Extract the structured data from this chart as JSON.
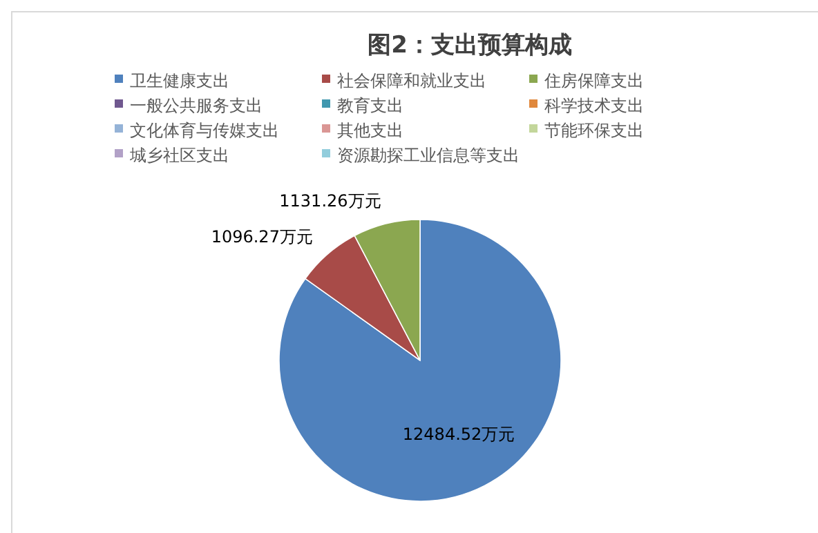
{
  "chart_data": {
    "type": "pie",
    "title": "图2：支出预算构成",
    "categories": [
      "卫生健康支出",
      "社会保障和就业支出",
      "住房保障支出",
      "一般公共服务支出",
      "教育支出",
      "科学技术支出",
      "文化体育与传媒支出",
      "其他支出",
      "节能环保支出",
      "城乡社区支出",
      "资源勘探工业信息等支出"
    ],
    "values": [
      12484.52,
      1096.27,
      1131.26,
      0,
      0,
      0,
      0,
      0,
      0,
      0,
      0
    ],
    "value_labels": [
      "12484.52万元",
      "1096.27万元",
      "1131.26万元",
      null,
      null,
      null,
      null,
      null,
      null,
      null,
      null
    ],
    "colors": [
      "#4f81bd",
      "#a84b48",
      "#8ba750",
      "#70588f",
      "#4198af",
      "#e0883c",
      "#95b3d7",
      "#da9694",
      "#c3d69b",
      "#b2a1c7",
      "#92cddc"
    ],
    "legend": "top"
  }
}
